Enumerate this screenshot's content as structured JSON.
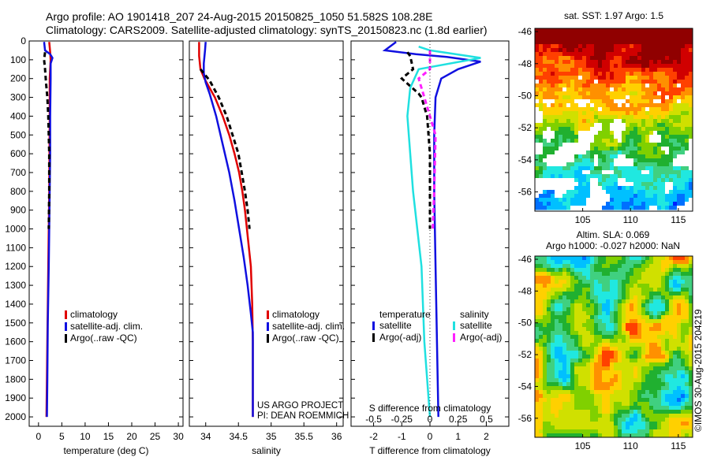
{
  "header": {
    "title_line1": "Argo profile: AO 1901418_207 24-Aug-2015 20150825_1050 51.582S 108.28E",
    "title_line2": "Climatology: CARS2009. Satellite-adjusted climatology: synTS_20150823.nc (1.8d earlier)"
  },
  "colors": {
    "climatology": "#e00000",
    "satellite": "#1010e0",
    "argo": "#000000",
    "sal_satellite": "#20e0e0",
    "sal_argo": "#ff20ff"
  },
  "chart_data": [
    {
      "type": "line",
      "id": "temperature",
      "xlabel": "temperature (deg C)",
      "ylabel": "",
      "xlim": [
        -2,
        31
      ],
      "ylim": [
        2050,
        0
      ],
      "xticks": [
        0,
        5,
        10,
        15,
        20,
        25,
        30
      ],
      "yticks": [
        0,
        100,
        200,
        300,
        400,
        500,
        600,
        700,
        800,
        900,
        1000,
        1100,
        1200,
        1300,
        1400,
        1500,
        1600,
        1700,
        1800,
        1900,
        2000
      ],
      "legend": [
        "climatology",
        "satellite-adj. clim.",
        "Argo(..raw -QC)"
      ],
      "series": [
        {
          "name": "climatology",
          "style": "solid",
          "color": "#e00000",
          "points": [
            [
              2.3,
              5
            ],
            [
              2.5,
              60
            ],
            [
              2.6,
              100
            ],
            [
              2.4,
              200
            ],
            [
              2.4,
              400
            ],
            [
              2.3,
              800
            ],
            [
              2.1,
              1200
            ],
            [
              1.9,
              1600
            ],
            [
              1.7,
              2000
            ]
          ]
        },
        {
          "name": "satellite-adj. clim.",
          "style": "solid",
          "color": "#1010e0",
          "points": [
            [
              1.2,
              5
            ],
            [
              1.4,
              50
            ],
            [
              2.5,
              70
            ],
            [
              3.0,
              90
            ],
            [
              2.6,
              120
            ],
            [
              2.6,
              200
            ],
            [
              2.5,
              400
            ],
            [
              2.5,
              600
            ],
            [
              2.4,
              800
            ],
            [
              2.3,
              1000
            ],
            [
              2.2,
              1200
            ],
            [
              2.0,
              1500
            ],
            [
              1.9,
              1800
            ],
            [
              1.8,
              2000
            ]
          ]
        },
        {
          "name": "Argo(..raw -QC)",
          "style": "dash",
          "color": "#000000",
          "points": [
            [
              1.4,
              60
            ],
            [
              1.2,
              100
            ],
            [
              1.4,
              150
            ],
            [
              1.6,
              220
            ],
            [
              1.9,
              300
            ],
            [
              2.1,
              400
            ],
            [
              2.2,
              500
            ],
            [
              2.3,
              600
            ],
            [
              2.3,
              800
            ],
            [
              2.2,
              1000
            ]
          ]
        }
      ]
    },
    {
      "type": "line",
      "id": "salinity",
      "xlabel": "salinity",
      "ylabel": "",
      "xlim": [
        33.75,
        36.1
      ],
      "ylim": [
        2050,
        0
      ],
      "xticks": [
        34,
        34.5,
        35,
        35.5,
        36
      ],
      "legend": [
        "climatology",
        "satellite-adj. clim.",
        "Argo(..raw -QC)"
      ],
      "series": [
        {
          "name": "climatology",
          "style": "solid",
          "color": "#e00000",
          "points": [
            [
              33.9,
              5
            ],
            [
              33.9,
              80
            ],
            [
              33.92,
              150
            ],
            [
              33.98,
              200
            ],
            [
              34.06,
              250
            ],
            [
              34.14,
              300
            ],
            [
              34.26,
              400
            ],
            [
              34.36,
              500
            ],
            [
              34.44,
              600
            ],
            [
              34.51,
              700
            ],
            [
              34.56,
              800
            ],
            [
              34.6,
              900
            ],
            [
              34.63,
              1000
            ],
            [
              34.66,
              1100
            ],
            [
              34.69,
              1200
            ],
            [
              34.71,
              1400
            ],
            [
              34.72,
              1600
            ],
            [
              34.72,
              2000
            ]
          ]
        },
        {
          "name": "satellite-adj. clim.",
          "style": "solid",
          "color": "#1010e0",
          "points": [
            [
              34.0,
              5
            ],
            [
              33.99,
              50
            ],
            [
              33.97,
              120
            ],
            [
              33.97,
              170
            ],
            [
              34.0,
              220
            ],
            [
              34.06,
              280
            ],
            [
              34.16,
              400
            ],
            [
              34.26,
              550
            ],
            [
              34.36,
              700
            ],
            [
              34.44,
              850
            ],
            [
              34.51,
              1000
            ],
            [
              34.58,
              1150
            ],
            [
              34.64,
              1300
            ],
            [
              34.69,
              1450
            ],
            [
              34.72,
              1550
            ],
            [
              34.72,
              2000
            ]
          ]
        },
        {
          "name": "Argo(..raw -QC)",
          "style": "dash",
          "color": "#000000",
          "points": [
            [
              33.92,
              150
            ],
            [
              34.06,
              210
            ],
            [
              34.2,
              300
            ],
            [
              34.32,
              400
            ],
            [
              34.41,
              500
            ],
            [
              34.5,
              600
            ],
            [
              34.55,
              700
            ],
            [
              34.6,
              800
            ],
            [
              34.64,
              900
            ],
            [
              34.67,
              1000
            ]
          ]
        }
      ],
      "annotation_lines": [
        "US ARGO PROJECT",
        "PI: DEAN ROEMMICH"
      ]
    },
    {
      "type": "line",
      "id": "difference",
      "xlabel": "T difference from climatology",
      "ylabel": "",
      "xlim": [
        -2.8,
        2.8
      ],
      "ylim": [
        2050,
        0
      ],
      "xticks": [
        -2,
        -1,
        0,
        1,
        2
      ],
      "top_axis_label": "S difference from climatology",
      "top_xticks_labels": [
        "-0.5",
        "-0.25",
        "0",
        "0.25",
        "0.5"
      ],
      "top_xticks_values": [
        -2,
        -1,
        0,
        1,
        2
      ],
      "legend_headers": [
        "temperature",
        "salinity"
      ],
      "legend": [
        "satellite",
        "Argo(-adj)",
        "satellite",
        "Argo(-adj)"
      ],
      "series": [
        {
          "name": "satellite",
          "group": "temperature",
          "style": "solid",
          "color": "#1010e0",
          "points": [
            [
              -1.2,
              5
            ],
            [
              -1.6,
              50
            ],
            [
              -0.5,
              70
            ],
            [
              0.6,
              85
            ],
            [
              1.8,
              110
            ],
            [
              1.0,
              150
            ],
            [
              0.4,
              200
            ],
            [
              0.2,
              300
            ],
            [
              0.15,
              500
            ],
            [
              0.15,
              800
            ],
            [
              0.2,
              1200
            ],
            [
              0.25,
              1600
            ],
            [
              0.3,
              2000
            ]
          ]
        },
        {
          "name": "Argo(-adj)",
          "group": "temperature",
          "style": "dash",
          "color": "#000000",
          "points": [
            [
              -0.8,
              60
            ],
            [
              -0.7,
              80
            ],
            [
              -0.6,
              150
            ],
            [
              -1.0,
              200
            ],
            [
              -0.4,
              280
            ],
            [
              -0.3,
              300
            ],
            [
              -0.1,
              400
            ],
            [
              0.0,
              600
            ],
            [
              0.0,
              800
            ],
            [
              0.0,
              1000
            ]
          ]
        },
        {
          "name": "satellite",
          "group": "salinity",
          "style": "solid",
          "color": "#20e0e0",
          "points": [
            [
              -0.4,
              30
            ],
            [
              0.0,
              50
            ],
            [
              1.8,
              90
            ],
            [
              -0.4,
              150
            ],
            [
              -0.7,
              250
            ],
            [
              -0.8,
              400
            ],
            [
              -0.6,
              800
            ],
            [
              -0.3,
              1200
            ],
            [
              -0.2,
              1600
            ],
            [
              0.0,
              2000
            ]
          ]
        },
        {
          "name": "Argo(-adj)",
          "group": "salinity",
          "style": "dash",
          "color": "#ff20ff",
          "points": [
            [
              0.0,
              50
            ],
            [
              0.0,
              150
            ],
            [
              -0.4,
              200
            ],
            [
              -0.2,
              300
            ],
            [
              0.2,
              500
            ],
            [
              0.15,
              800
            ],
            [
              0.1,
              1000
            ]
          ]
        }
      ]
    },
    {
      "type": "heatmap",
      "id": "sst_map",
      "title": "sat. SST: 1.97 Argo: 1.5",
      "xlim": [
        100,
        116.5
      ],
      "ylim": [
        -57.2,
        -45.8
      ],
      "xticks": [
        105,
        110,
        115
      ],
      "yticks": [
        -46,
        -48,
        -50,
        -52,
        -54,
        -56
      ]
    },
    {
      "type": "heatmap",
      "id": "sla_map",
      "title_line1": "Altim. SLA: 0.069",
      "title_line2": "Argo h1000: -0.027 h2000: NaN",
      "xlim": [
        100,
        116.5
      ],
      "ylim": [
        -57.2,
        -45.8
      ],
      "xticks": [
        105,
        110,
        115
      ],
      "yticks": [
        -46,
        -48,
        -50,
        -52,
        -54,
        -56
      ]
    }
  ],
  "footer": {
    "stamp": "©IMOS 30-Aug-2015 204219"
  }
}
